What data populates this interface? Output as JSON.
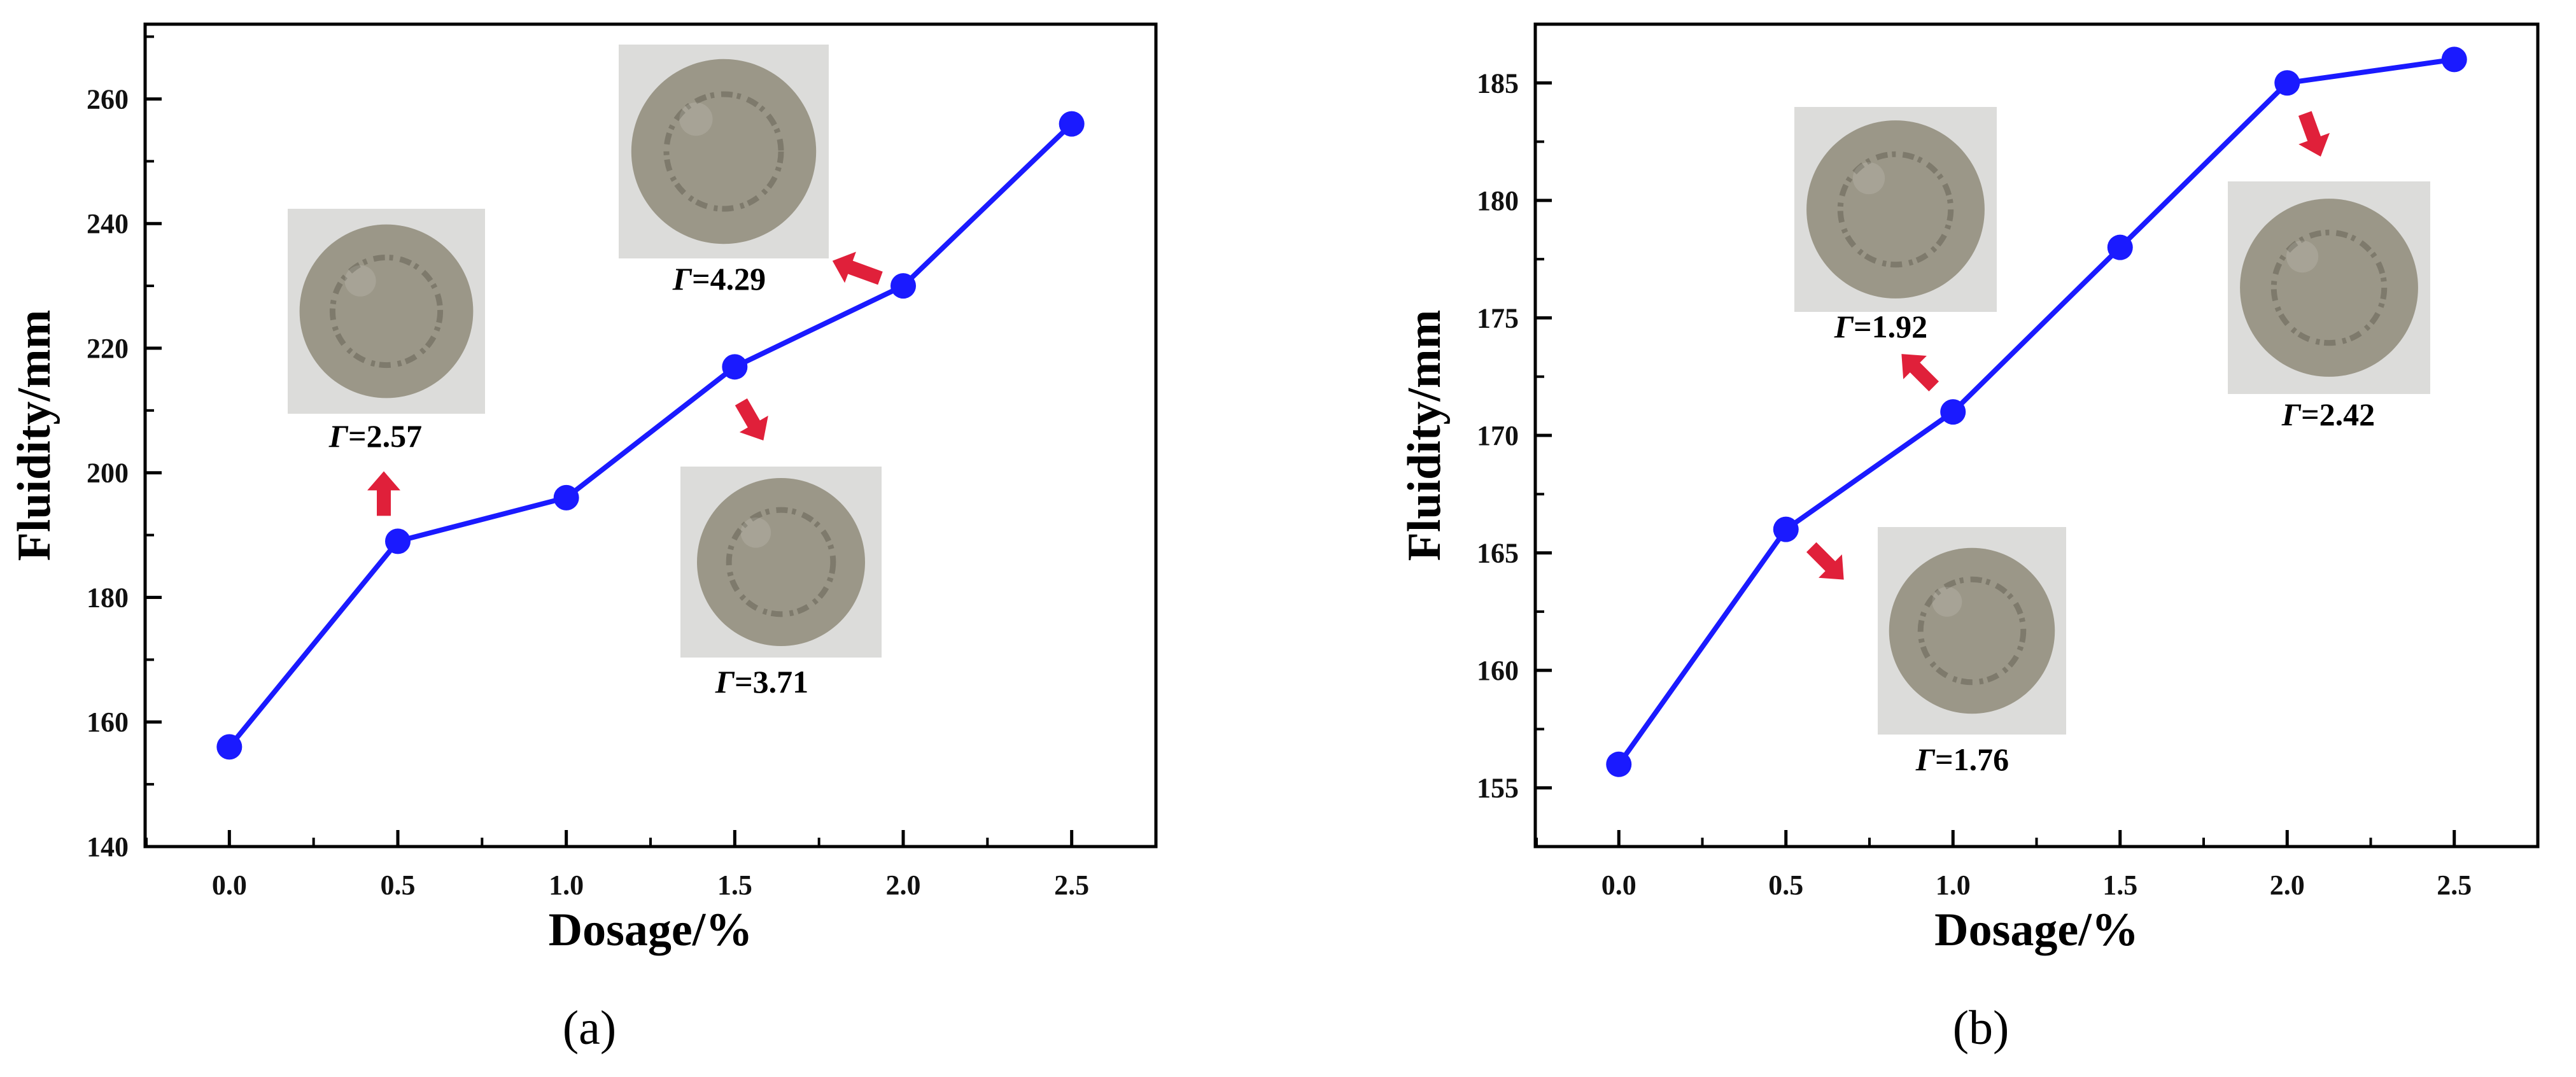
{
  "colors": {
    "line": "#1a1aff",
    "marker": "#1a1aff",
    "arrow": "#e0203a",
    "axis": "#000000",
    "photo_bg": "#dcdcda",
    "photo_disc": "#9b9788",
    "photo_rim": "#7e7a6c"
  },
  "chart_data": [
    {
      "type": "line",
      "panel_label": "(a)",
      "xlabel": "Dosage/%",
      "ylabel": "Fluidity/mm",
      "x": [
        0.0,
        0.5,
        1.0,
        1.5,
        2.0,
        2.5
      ],
      "x_tick_labels": [
        "0.0",
        "0.5",
        "1.0",
        "1.5",
        "2.0",
        "2.5"
      ],
      "y_ticks": [
        140,
        160,
        180,
        200,
        220,
        240,
        260
      ],
      "y_tick_labels": [
        "140",
        "160",
        "180",
        "200",
        "220",
        "240",
        "260"
      ],
      "xlim": [
        -0.25,
        2.75
      ],
      "ylim": [
        140,
        272
      ],
      "series": [
        {
          "values": [
            156,
            189,
            196,
            217,
            230,
            256
          ]
        }
      ],
      "annotations": [
        {
          "point_index": 1,
          "gamma": "2.57",
          "icon": "spread-disc-photo",
          "arrow": "up"
        },
        {
          "point_index": 3,
          "gamma": "3.71",
          "icon": "spread-disc-photo",
          "arrow": "down"
        },
        {
          "point_index": 4,
          "gamma": "4.29",
          "icon": "spread-disc-photo",
          "arrow": "up-left"
        }
      ],
      "grid": false
    },
    {
      "type": "line",
      "panel_label": "(b)",
      "xlabel": "Dosage/%",
      "ylabel": "Fluidity/mm",
      "x": [
        0.0,
        0.5,
        1.0,
        1.5,
        2.0,
        2.5
      ],
      "x_tick_labels": [
        "0.0",
        "0.5",
        "1.0",
        "1.5",
        "2.0",
        "2.5"
      ],
      "y_ticks": [
        155,
        160,
        165,
        170,
        175,
        180,
        185
      ],
      "y_tick_labels": [
        "155",
        "160",
        "165",
        "170",
        "175",
        "180",
        "185"
      ],
      "xlim": [
        -0.25,
        2.75
      ],
      "ylim": [
        152.5,
        187.5
      ],
      "series": [
        {
          "values": [
            156,
            166,
            171,
            178,
            185,
            186
          ]
        }
      ],
      "annotations": [
        {
          "point_index": 1,
          "gamma": "1.76",
          "icon": "spread-disc-photo",
          "arrow": "down-right"
        },
        {
          "point_index": 2,
          "gamma": "1.92",
          "icon": "spread-disc-photo",
          "arrow": "up-left"
        },
        {
          "point_index": 4,
          "gamma": "2.42",
          "icon": "spread-disc-photo",
          "arrow": "down"
        }
      ],
      "grid": false
    }
  ]
}
